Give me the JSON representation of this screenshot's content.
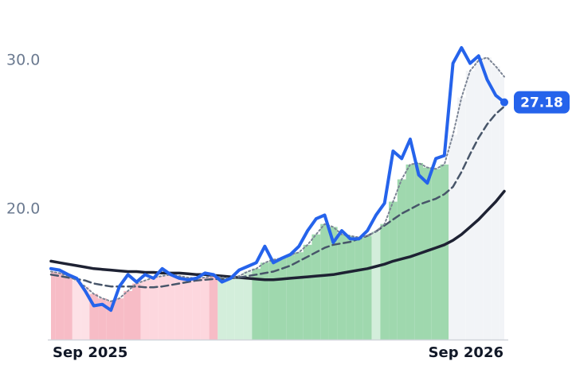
{
  "chart_data": {
    "type": "line",
    "x": [
      0,
      1,
      2,
      3,
      4,
      5,
      6,
      7,
      8,
      9,
      10,
      11,
      12,
      13,
      14,
      15,
      16,
      17,
      18,
      19,
      20,
      21,
      22,
      23,
      24,
      25,
      26,
      27,
      28,
      29,
      30,
      31,
      32,
      33,
      34,
      35,
      36,
      37,
      38,
      39,
      40,
      41,
      42,
      43,
      44,
      45,
      46,
      47,
      48,
      49,
      50,
      51,
      52,
      53
    ],
    "xlim": [
      0,
      53
    ],
    "xticks": [
      {
        "value": 0,
        "label": "Sep 2025"
      },
      {
        "value": 53,
        "label": "Sep 2026"
      }
    ],
    "ylim": [
      11.23,
      32.4
    ],
    "yticks": [
      {
        "value": 20,
        "label": "20.0"
      },
      {
        "value": 30,
        "label": "30.0"
      }
    ],
    "series": [
      {
        "color": "#2563eb",
        "style": "solid",
        "width": 4,
        "values": [
          16.0,
          15.9,
          15.6,
          15.35,
          14.5,
          13.5,
          13.6,
          13.2,
          14.8,
          15.6,
          15.1,
          15.6,
          15.35,
          16.0,
          15.6,
          15.35,
          15.25,
          15.35,
          15.7,
          15.6,
          15.1,
          15.35,
          15.9,
          16.15,
          16.4,
          17.5,
          16.4,
          16.7,
          16.95,
          17.5,
          18.55,
          19.35,
          19.6,
          17.75,
          18.55,
          18.0,
          18.0,
          18.55,
          19.6,
          20.4,
          23.9,
          23.4,
          24.7,
          22.3,
          21.75,
          23.4,
          23.6,
          29.8,
          30.85,
          29.8,
          30.3,
          28.7,
          27.65,
          27.18
        ]
      },
      {
        "color": "#7b8494",
        "style": "dotted",
        "width": 2,
        "values": [
          15.8,
          15.7,
          15.5,
          15.2,
          14.8,
          14.3,
          14.0,
          13.8,
          14.0,
          14.5,
          15.0,
          15.2,
          15.4,
          15.5,
          15.6,
          15.5,
          15.4,
          15.35,
          15.4,
          15.5,
          15.4,
          15.35,
          15.5,
          15.8,
          16.0,
          16.4,
          16.6,
          16.7,
          16.9,
          17.1,
          17.6,
          18.3,
          19.0,
          18.8,
          18.3,
          18.2,
          18.1,
          18.2,
          18.5,
          19.0,
          20.5,
          22.0,
          23.0,
          23.1,
          22.8,
          22.7,
          23.0,
          25.0,
          27.5,
          29.3,
          30.0,
          30.2,
          29.6,
          28.9
        ]
      },
      {
        "color": "#475569",
        "style": "dashed",
        "width": 2.5,
        "values": [
          15.6,
          15.5,
          15.4,
          15.3,
          15.2,
          15.0,
          14.9,
          14.8,
          14.8,
          14.8,
          14.8,
          14.75,
          14.75,
          14.8,
          14.9,
          15.0,
          15.1,
          15.2,
          15.25,
          15.3,
          15.3,
          15.35,
          15.4,
          15.5,
          15.6,
          15.7,
          15.8,
          16.0,
          16.2,
          16.5,
          16.8,
          17.1,
          17.4,
          17.6,
          17.7,
          17.8,
          18.0,
          18.2,
          18.5,
          18.9,
          19.3,
          19.7,
          20.0,
          20.3,
          20.5,
          20.7,
          21.0,
          21.5,
          22.5,
          23.7,
          24.8,
          25.7,
          26.4,
          26.9
        ]
      },
      {
        "color": "#1e2233",
        "style": "solid",
        "width": 3.5,
        "values": [
          16.5,
          16.4,
          16.3,
          16.2,
          16.1,
          16.0,
          15.95,
          15.9,
          15.85,
          15.8,
          15.8,
          15.75,
          15.75,
          15.7,
          15.7,
          15.7,
          15.65,
          15.6,
          15.6,
          15.55,
          15.5,
          15.45,
          15.4,
          15.35,
          15.3,
          15.25,
          15.25,
          15.3,
          15.35,
          15.4,
          15.45,
          15.5,
          15.55,
          15.6,
          15.7,
          15.8,
          15.9,
          16.0,
          16.15,
          16.3,
          16.5,
          16.65,
          16.8,
          17.0,
          17.2,
          17.4,
          17.6,
          17.9,
          18.3,
          18.8,
          19.3,
          19.9,
          20.5,
          21.2
        ]
      }
    ],
    "band_colors": [
      "#f7bcc6",
      "#f7bcc6",
      "#f7bcc6",
      "#fde1e6",
      "#fde1e6",
      "#f7bcc6",
      "#f7bcc6",
      "#f7bcc6",
      "#f7bcc6",
      "#f7bcc6",
      "#f7bcc6",
      "#fdd7de",
      "#fdd7de",
      "#fdd7de",
      "#fdd7de",
      "#fdd7de",
      "#fdd7de",
      "#fdd7de",
      "#fdd7de",
      "#f7bcc6",
      "#d3eedb",
      "#d3eedb",
      "#d3eedb",
      "#d3eedb",
      "#9fd8ae",
      "#9fd8ae",
      "#9fd8ae",
      "#9fd8ae",
      "#9fd8ae",
      "#9fd8ae",
      "#9fd8ae",
      "#9fd8ae",
      "#9fd8ae",
      "#9fd8ae",
      "#9fd8ae",
      "#9fd8ae",
      "#9fd8ae",
      "#9fd8ae",
      "#d3eedb",
      "#9fd8ae",
      "#9fd8ae",
      "#9fd8ae",
      "#9fd8ae",
      "#9fd8ae",
      "#9fd8ae",
      "#9fd8ae",
      "#9fd8ae",
      "#f2f4f7",
      "#f2f4f7",
      "#f2f4f7",
      "#f2f4f7",
      "#f2f4f7",
      "#f2f4f7",
      "#f2f4f7"
    ]
  }
}
